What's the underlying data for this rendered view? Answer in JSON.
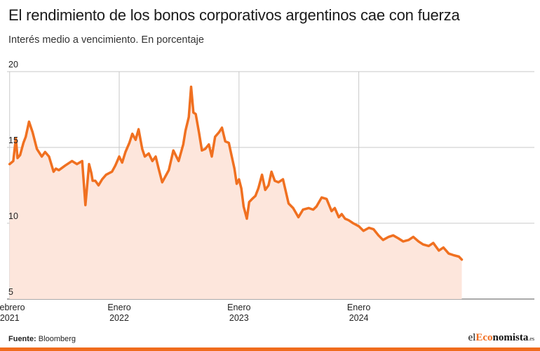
{
  "header": {
    "title": "El rendimiento de los bonos corporativos argentinos cae con fuerza",
    "subtitle": "Interés medio a vencimiento. En porcentaje"
  },
  "footer": {
    "source_label": "Fuente:",
    "source_value": "Bloomberg",
    "brand_part1": "el",
    "brand_part2": "Eco",
    "brand_part3": "nomista",
    "brand_part4": ".es"
  },
  "colors": {
    "line": "#f07020",
    "area": "#fde6dc",
    "grid": "#c8c8c8",
    "accent": "#f06c1d"
  },
  "chart_data": {
    "type": "area",
    "title": "El rendimiento de los bonos corporativos argentinos cae con fuerza",
    "subtitle": "Interés medio a vencimiento. En porcentaje",
    "ylim": [
      5,
      20
    ],
    "yticks": [
      "5",
      "10",
      "15",
      "20"
    ],
    "xlim": [
      "2021-01-24",
      "2025-02-28"
    ],
    "xticks": [
      {
        "date": "2021-02-01",
        "line1": "Febrero",
        "line2": "2021"
      },
      {
        "date": "2022-01-01",
        "line1": "Enero",
        "line2": "2022"
      },
      {
        "date": "2023-01-01",
        "line1": "Enero",
        "line2": "2023"
      },
      {
        "date": "2024-01-01",
        "line1": "Enero",
        "line2": "2024"
      }
    ],
    "grid": true,
    "legend": "none",
    "series": [
      {
        "x": [
          "2021-02-01",
          "2021-02-12",
          "2021-02-20",
          "2021-02-25",
          "2021-03-05",
          "2021-03-15",
          "2021-03-22",
          "2021-04-01",
          "2021-04-12",
          "2021-04-25",
          "2021-05-10",
          "2021-05-20",
          "2021-06-01",
          "2021-06-15",
          "2021-06-22",
          "2021-07-01",
          "2021-07-20",
          "2021-08-10",
          "2021-08-25",
          "2021-09-10",
          "2021-09-20",
          "2021-10-01",
          "2021-10-08",
          "2021-10-12",
          "2021-10-20",
          "2021-10-30",
          "2021-11-10",
          "2021-11-22",
          "2021-12-01",
          "2021-12-10",
          "2021-12-20",
          "2022-01-01",
          "2022-01-10",
          "2022-01-20",
          "2022-02-01",
          "2022-02-10",
          "2022-02-20",
          "2022-03-01",
          "2022-03-12",
          "2022-03-20",
          "2022-04-01",
          "2022-04-12",
          "2022-04-22",
          "2022-05-01",
          "2022-05-12",
          "2022-05-22",
          "2022-06-01",
          "2022-06-15",
          "2022-07-01",
          "2022-07-15",
          "2022-07-22",
          "2022-08-01",
          "2022-08-08",
          "2022-08-15",
          "2022-08-22",
          "2022-09-01",
          "2022-09-10",
          "2022-09-20",
          "2022-10-01",
          "2022-10-10",
          "2022-10-20",
          "2022-11-01",
          "2022-11-10",
          "2022-11-20",
          "2022-12-01",
          "2022-12-10",
          "2022-12-18",
          "2022-12-25",
          "2023-01-01",
          "2023-01-08",
          "2023-01-15",
          "2023-01-25",
          "2023-02-01",
          "2023-02-10",
          "2023-02-20",
          "2023-03-01",
          "2023-03-12",
          "2023-03-22",
          "2023-04-01",
          "2023-04-10",
          "2023-04-20",
          "2023-05-01",
          "2023-05-15",
          "2023-06-01",
          "2023-06-15",
          "2023-07-01",
          "2023-07-15",
          "2023-08-01",
          "2023-08-15",
          "2023-08-25",
          "2023-09-10",
          "2023-09-25",
          "2023-10-10",
          "2023-10-20",
          "2023-11-01",
          "2023-11-10",
          "2023-11-20",
          "2023-12-01",
          "2023-12-15",
          "2024-01-01",
          "2024-01-15",
          "2024-02-01",
          "2024-02-15",
          "2024-03-01",
          "2024-03-15",
          "2024-04-01",
          "2024-04-15",
          "2024-05-01",
          "2024-05-15",
          "2024-06-01",
          "2024-06-15",
          "2024-07-01",
          "2024-07-15",
          "2024-08-01",
          "2024-08-15",
          "2024-09-01",
          "2024-09-15",
          "2024-10-01",
          "2024-10-15",
          "2024-11-01",
          "2024-11-10"
        ],
        "values": [
          13.9,
          14.1,
          15.6,
          14.3,
          14.5,
          15.3,
          15.7,
          16.7,
          16.0,
          14.9,
          14.4,
          14.7,
          14.4,
          13.4,
          13.6,
          13.5,
          13.8,
          14.1,
          13.9,
          14.1,
          11.2,
          13.9,
          13.3,
          12.8,
          12.8,
          12.5,
          12.9,
          13.2,
          13.3,
          13.4,
          13.8,
          14.4,
          14.0,
          14.7,
          15.3,
          15.9,
          15.5,
          16.2,
          14.9,
          14.4,
          14.6,
          14.1,
          14.4,
          13.6,
          12.7,
          13.1,
          13.5,
          14.8,
          14.1,
          15.2,
          16.1,
          17.0,
          19.0,
          17.3,
          17.2,
          16.0,
          14.8,
          14.9,
          15.2,
          14.4,
          15.7,
          16.0,
          16.3,
          15.4,
          15.3,
          14.4,
          13.6,
          12.6,
          12.9,
          12.3,
          11.1,
          10.3,
          11.4,
          11.6,
          11.8,
          12.3,
          13.2,
          12.2,
          12.5,
          13.4,
          12.8,
          12.7,
          12.9,
          11.3,
          11.0,
          10.4,
          10.9,
          11.0,
          10.9,
          11.1,
          11.7,
          11.6,
          10.8,
          11.0,
          10.4,
          10.6,
          10.3,
          10.2,
          10.0,
          9.8,
          9.5,
          9.7,
          9.6,
          9.2,
          8.9,
          9.1,
          9.2,
          9.0,
          8.8,
          8.9,
          9.1,
          8.8,
          8.6,
          8.5,
          8.7,
          8.2,
          8.4,
          8.0,
          7.9,
          7.8,
          7.6
        ]
      }
    ]
  }
}
